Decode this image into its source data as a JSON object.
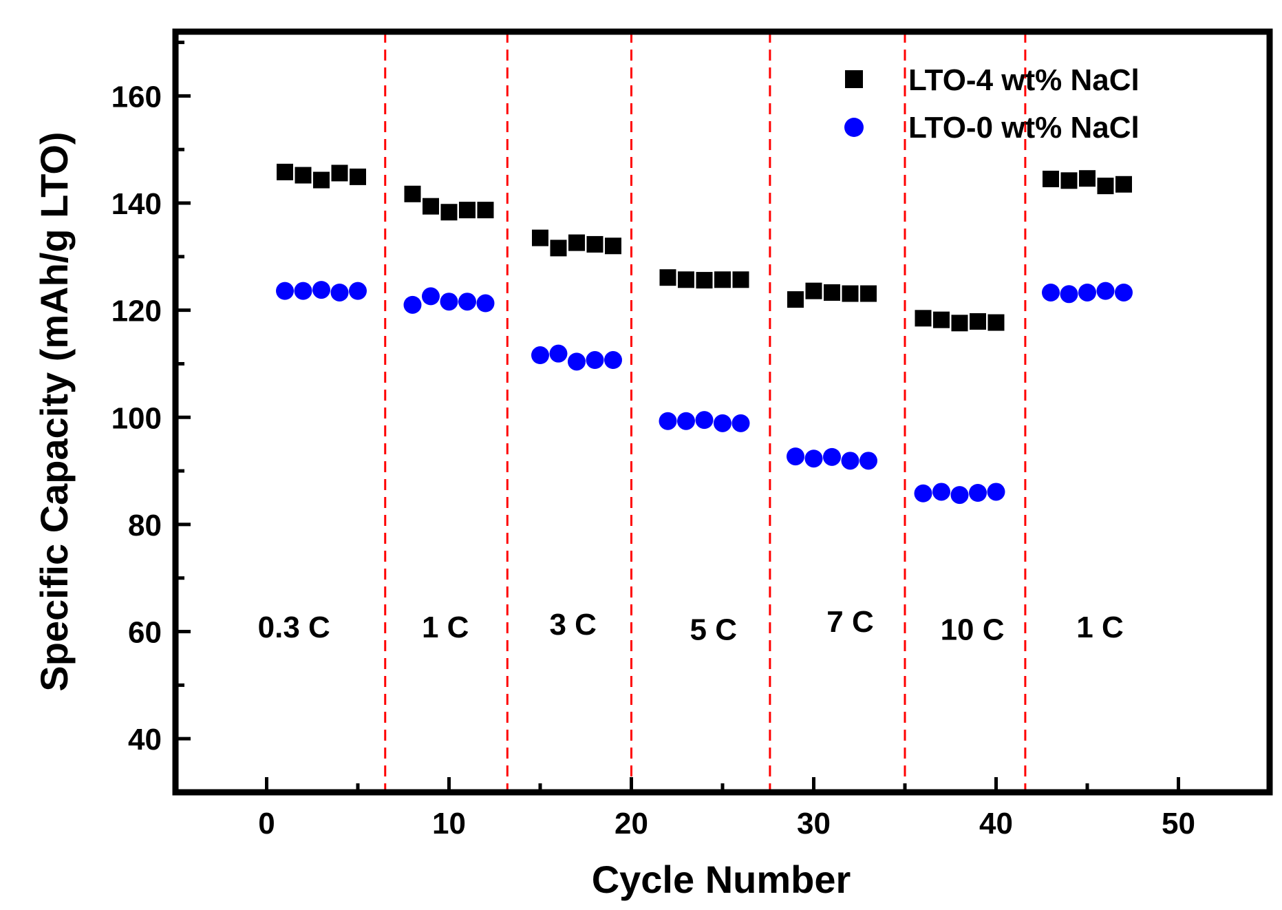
{
  "chart_data": {
    "type": "scatter",
    "xlabel": "Cycle Number",
    "ylabel": "Specific Capacity (mAh/g LTO)",
    "xlim": [
      -5,
      55
    ],
    "ylim": [
      30,
      172
    ],
    "xticks": [
      0,
      10,
      20,
      30,
      40,
      50
    ],
    "yticks": [
      40,
      60,
      80,
      100,
      120,
      140,
      160
    ],
    "grid": false,
    "legend_position": "top-right",
    "rate_dividers": [
      6.5,
      13.2,
      20.0,
      27.6,
      35.0,
      41.6
    ],
    "rate_labels": [
      {
        "text": "0.3 C",
        "x": 1.5,
        "y": 61
      },
      {
        "text": "1 C",
        "x": 9.8,
        "y": 61
      },
      {
        "text": "3 C",
        "x": 16.8,
        "y": 61.5
      },
      {
        "text": "5 C",
        "x": 24.5,
        "y": 60.5
      },
      {
        "text": "7 C",
        "x": 32.0,
        "y": 62
      },
      {
        "text": "10 C",
        "x": 38.7,
        "y": 60.5
      },
      {
        "text": "1 C",
        "x": 45.7,
        "y": 61
      }
    ],
    "series": [
      {
        "name": "LTO-4 wt% NaCl",
        "marker": "square",
        "color": "#000000",
        "x": [
          1,
          2,
          3,
          4,
          5,
          8,
          9,
          10,
          11,
          12,
          15,
          16,
          17,
          18,
          19,
          22,
          23,
          24,
          25,
          26,
          29,
          30,
          31,
          32,
          33,
          36,
          37,
          38,
          39,
          40,
          43,
          44,
          45,
          46,
          47
        ],
        "y": [
          145.8,
          145.2,
          144.3,
          145.6,
          144.9,
          141.7,
          139.4,
          138.3,
          138.7,
          138.7,
          133.5,
          131.6,
          132.6,
          132.3,
          132.0,
          126.1,
          125.7,
          125.6,
          125.7,
          125.7,
          122.0,
          123.6,
          123.3,
          123.1,
          123.1,
          118.5,
          118.2,
          117.6,
          117.9,
          117.7,
          144.5,
          144.2,
          144.6,
          143.2,
          143.5
        ]
      },
      {
        "name": "LTO-0 wt% NaCl",
        "marker": "circle",
        "color": "#0000ff",
        "x": [
          1,
          2,
          3,
          4,
          5,
          8,
          9,
          10,
          11,
          12,
          15,
          16,
          17,
          18,
          19,
          22,
          23,
          24,
          25,
          26,
          29,
          30,
          31,
          32,
          33,
          36,
          37,
          38,
          39,
          40,
          43,
          44,
          45,
          46,
          47
        ],
        "y": [
          123.6,
          123.6,
          123.8,
          123.3,
          123.6,
          121.0,
          122.6,
          121.6,
          121.6,
          121.3,
          111.6,
          111.9,
          110.4,
          110.7,
          110.7,
          99.3,
          99.3,
          99.5,
          98.9,
          98.9,
          92.7,
          92.3,
          92.6,
          91.9,
          91.9,
          85.8,
          86.1,
          85.5,
          85.9,
          86.1,
          123.3,
          123.0,
          123.3,
          123.6,
          123.3
        ]
      }
    ]
  }
}
